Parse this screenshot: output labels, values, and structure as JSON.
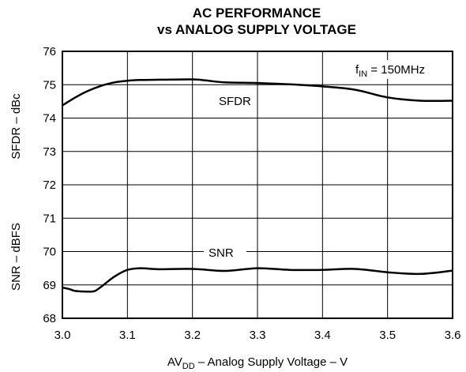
{
  "chart_data": {
    "type": "line",
    "title_line1": "AC PERFORMANCE",
    "title_line2": "vs ANALOG SUPPLY VOLTAGE",
    "xlabel": {
      "pre": "AV",
      "sub": "DD",
      "post": " – Analog Supply Voltage – V"
    },
    "ylabel_top": "SFDR – dBc",
    "ylabel_bottom": "SNR – dBFS",
    "xlim": [
      3.0,
      3.6
    ],
    "ylim": [
      68,
      76
    ],
    "xticks": [
      "3.0",
      "3.1",
      "3.2",
      "3.3",
      "3.4",
      "3.5",
      "3.6"
    ],
    "yticks": [
      "68",
      "69",
      "70",
      "71",
      "72",
      "73",
      "74",
      "75",
      "76"
    ],
    "grid": true,
    "annotation": {
      "pre": "f",
      "sub": "IN",
      "post": " = 150MHz"
    },
    "series": [
      {
        "name": "SFDR",
        "x": [
          3.0,
          3.02,
          3.04,
          3.06,
          3.08,
          3.1,
          3.12,
          3.15,
          3.2,
          3.22,
          3.25,
          3.3,
          3.35,
          3.4,
          3.45,
          3.5,
          3.55,
          3.6
        ],
        "y": [
          74.38,
          74.62,
          74.82,
          74.97,
          75.07,
          75.12,
          75.14,
          75.15,
          75.16,
          75.13,
          75.07,
          75.05,
          75.01,
          74.95,
          74.85,
          74.62,
          74.52,
          74.52
        ]
      },
      {
        "name": "SNR",
        "x": [
          3.0,
          3.01,
          3.02,
          3.04,
          3.05,
          3.06,
          3.08,
          3.1,
          3.12,
          3.15,
          3.2,
          3.25,
          3.3,
          3.35,
          3.4,
          3.45,
          3.5,
          3.55,
          3.6
        ],
        "y": [
          68.92,
          68.88,
          68.82,
          68.8,
          68.82,
          68.95,
          69.25,
          69.45,
          69.5,
          69.47,
          69.48,
          69.42,
          69.5,
          69.45,
          69.45,
          69.48,
          69.38,
          69.33,
          69.43
        ]
      }
    ]
  }
}
